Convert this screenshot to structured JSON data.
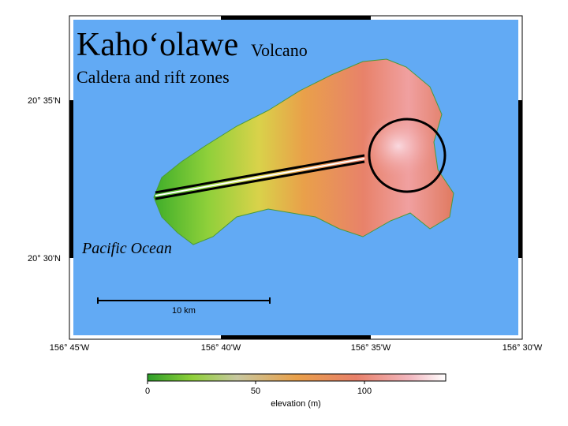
{
  "title": {
    "name": "Kaho‘olawe",
    "suffix": "Volcano",
    "subtitle": "Caldera and rift zones"
  },
  "map": {
    "ocean_label": "Pacific Ocean",
    "scale_label": "10 km",
    "latitude_labels": [
      "20° 35'N",
      "20° 30'N"
    ],
    "longitude_labels": [
      "156° 45'W",
      "156° 40'W",
      "156° 35'W",
      "156° 30'W"
    ]
  },
  "legend": {
    "ticks": [
      "0",
      "50",
      "100"
    ],
    "label": "elevation (m)"
  }
}
